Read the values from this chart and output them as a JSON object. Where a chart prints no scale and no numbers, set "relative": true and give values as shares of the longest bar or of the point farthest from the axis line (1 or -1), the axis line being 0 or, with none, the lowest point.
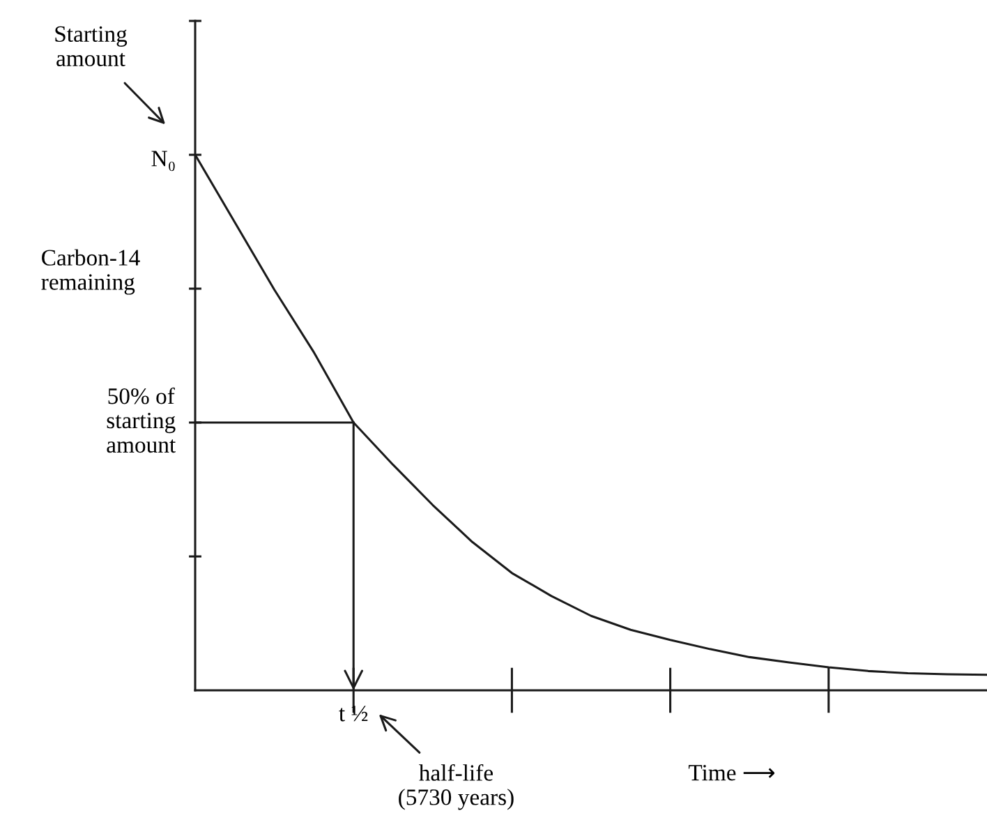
{
  "chart_data": {
    "type": "line",
    "relative": true,
    "ylabel": "Carbon-14\nremaining",
    "xlabel": "Time ⟶",
    "categories": [
      null,
      null,
      null,
      null,
      null,
      null,
      null,
      null,
      null,
      null,
      null,
      null,
      null,
      null,
      null,
      null,
      null,
      null,
      null,
      null,
      null
    ],
    "series": [
      {
        "color": "#1a1a1a",
        "values": [
          1.0,
          0.874,
          0.748,
          0.631,
          0.5,
          0.421,
          0.346,
          0.277,
          0.219,
          0.176,
          0.139,
          0.113,
          0.094,
          0.077,
          0.062,
          0.052,
          0.043,
          0.036,
          0.032,
          0.03,
          0.029
        ]
      }
    ],
    "ref_lines": [
      {
        "axis": "y",
        "value": 0.5,
        "color": "#1a1a1a"
      }
    ],
    "annotations": [
      "Starting\namount",
      "N₀",
      "50% of\nstarting\namount",
      "t ½",
      "half-life\n(5730 years)"
    ],
    "grid": false,
    "legend": false,
    "marker": "none",
    "line_style": "solid"
  }
}
